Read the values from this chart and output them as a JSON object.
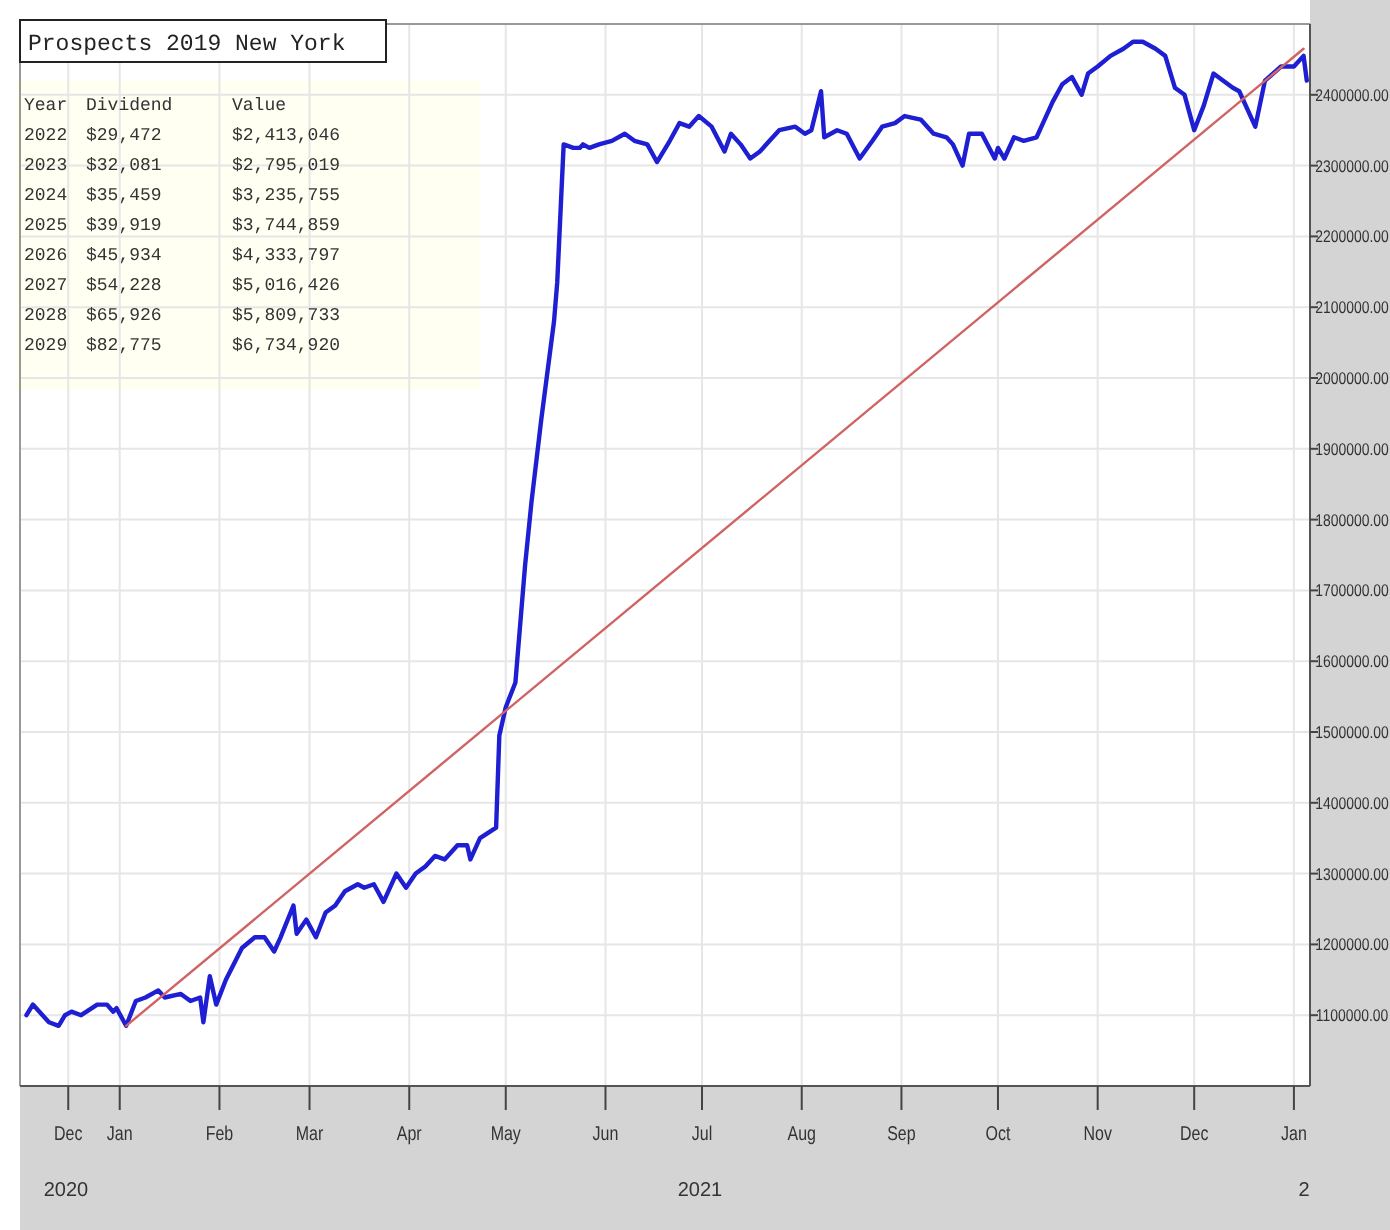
{
  "chart_data": {
    "type": "line",
    "title": "Prospects 2019 New York",
    "annotations": [
      "Year",
      "Dividend",
      "Value",
      "2022",
      "$29,472",
      "$2,413,046",
      "2023",
      "$32,081",
      "$2,795,019",
      "2024",
      "$35,459",
      "$3,235,755",
      "2025",
      "$39,919",
      "$3,744,859",
      "2026",
      "$45,934",
      "$4,333,797",
      "2027",
      "$54,228",
      "$5,016,426",
      "2028",
      "$65,926",
      "$5,809,733",
      "2029",
      "$82,775",
      "$6,734,920",
      "2020",
      "2021",
      "2"
    ],
    "xlim": [
      "2020-12-01",
      "2022-01-06"
    ],
    "xticks": [
      {
        "value": "2020-12-16",
        "label": "Dec"
      },
      {
        "value": "2021-01-01",
        "label": "Jan"
      },
      {
        "value": "2021-02-01",
        "label": "Feb"
      },
      {
        "value": "2021-03-01",
        "label": "Mar"
      },
      {
        "value": "2021-04-01",
        "label": "Apr"
      },
      {
        "value": "2021-05-01",
        "label": "May"
      },
      {
        "value": "2021-06-01",
        "label": "Jun"
      },
      {
        "value": "2021-07-01",
        "label": "Jul"
      },
      {
        "value": "2021-08-01",
        "label": "Aug"
      },
      {
        "value": "2021-09-01",
        "label": "Sep"
      },
      {
        "value": "2021-10-01",
        "label": "Oct"
      },
      {
        "value": "2021-11-01",
        "label": "Nov"
      },
      {
        "value": "2021-12-01",
        "label": "Dec"
      },
      {
        "value": "2022-01-01",
        "label": "Jan"
      }
    ],
    "ylim": [
      1000000,
      2500000
    ],
    "yticks": [
      {
        "value": 1100000,
        "label": "1100000.00"
      },
      {
        "value": 1200000,
        "label": "1200000.00"
      },
      {
        "value": 1300000,
        "label": "1300000.00"
      },
      {
        "value": 1400000,
        "label": "1400000.00"
      },
      {
        "value": 1500000,
        "label": "1500000.00"
      },
      {
        "value": 1600000,
        "label": "1600000.00"
      },
      {
        "value": 1700000,
        "label": "1700000.00"
      },
      {
        "value": 1800000,
        "label": "1800000.00"
      },
      {
        "value": 1900000,
        "label": "1900000.00"
      },
      {
        "value": 2000000,
        "label": "2000000.00"
      },
      {
        "value": 2100000,
        "label": "2100000.00"
      },
      {
        "value": 2200000,
        "label": "2200000.00"
      },
      {
        "value": 2300000,
        "label": "2300000.00"
      },
      {
        "value": 2400000,
        "label": "2400000.00"
      }
    ],
    "grid": true,
    "marker": "none",
    "series": [
      {
        "color": "#1e1ed2",
        "x": [
          "2020-12-03",
          "2020-12-05",
          "2020-12-10",
          "2020-12-13",
          "2020-12-15",
          "2020-12-17",
          "2020-12-20",
          "2020-12-25",
          "2020-12-28",
          "2020-12-30",
          "2020-12-31",
          "2021-01-03",
          "2021-01-06",
          "2021-01-09",
          "2021-01-13",
          "2021-01-15",
          "2021-01-20",
          "2021-01-23",
          "2021-01-26",
          "2021-01-27",
          "2021-01-29",
          "2021-01-31",
          "2021-02-03",
          "2021-02-08",
          "2021-02-12",
          "2021-02-15",
          "2021-02-18",
          "2021-02-20",
          "2021-02-24",
          "2021-02-25",
          "2021-02-28",
          "2021-03-03",
          "2021-03-06",
          "2021-03-09",
          "2021-03-12",
          "2021-03-16",
          "2021-03-18",
          "2021-03-21",
          "2021-03-24",
          "2021-03-28",
          "2021-03-31",
          "2021-04-03",
          "2021-04-06",
          "2021-04-09",
          "2021-04-12",
          "2021-04-16",
          "2021-04-19",
          "2021-04-20",
          "2021-04-23",
          "2021-04-28",
          "2021-04-29",
          "2021-05-01",
          "2021-05-04",
          "2021-05-07",
          "2021-05-09",
          "2021-05-12",
          "2021-05-16",
          "2021-05-17",
          "2021-05-19",
          "2021-05-22",
          "2021-05-24",
          "2021-05-25",
          "2021-05-27",
          "2021-05-30",
          "2021-06-03",
          "2021-06-07",
          "2021-06-10",
          "2021-06-14",
          "2021-06-17",
          "2021-06-21",
          "2021-06-24",
          "2021-06-27",
          "2021-06-30",
          "2021-07-04",
          "2021-07-08",
          "2021-07-10",
          "2021-07-13",
          "2021-07-16",
          "2021-07-19",
          "2021-07-22",
          "2021-07-25",
          "2021-07-30",
          "2021-08-02",
          "2021-08-04",
          "2021-08-07",
          "2021-08-08",
          "2021-08-12",
          "2021-08-15",
          "2021-08-19",
          "2021-08-23",
          "2021-08-26",
          "2021-08-30",
          "2021-09-02",
          "2021-09-07",
          "2021-09-11",
          "2021-09-15",
          "2021-09-17",
          "2021-09-20",
          "2021-09-22",
          "2021-09-26",
          "2021-09-30",
          "2021-10-01",
          "2021-10-03",
          "2021-10-06",
          "2021-10-09",
          "2021-10-13",
          "2021-10-15",
          "2021-10-18",
          "2021-10-21",
          "2021-10-24",
          "2021-10-27",
          "2021-10-29",
          "2021-11-01",
          "2021-11-05",
          "2021-11-09",
          "2021-11-12",
          "2021-11-15",
          "2021-11-19",
          "2021-11-22",
          "2021-11-25",
          "2021-11-28",
          "2021-12-01",
          "2021-12-04",
          "2021-12-07",
          "2021-12-13",
          "2021-12-15",
          "2021-12-20",
          "2021-12-23",
          "2021-12-28",
          "2022-01-01",
          "2022-01-04",
          "2022-01-05"
        ],
        "values": [
          1100000,
          1115000,
          1090000,
          1085000,
          1100000,
          1105000,
          1100000,
          1115000,
          1115000,
          1105000,
          1110000,
          1085000,
          1120000,
          1125000,
          1135000,
          1125000,
          1130000,
          1120000,
          1125000,
          1090000,
          1155000,
          1115000,
          1150000,
          1195000,
          1210000,
          1210000,
          1190000,
          1210000,
          1255000,
          1215000,
          1235000,
          1210000,
          1245000,
          1255000,
          1275000,
          1285000,
          1280000,
          1285000,
          1260000,
          1300000,
          1280000,
          1300000,
          1310000,
          1325000,
          1320000,
          1340000,
          1340000,
          1320000,
          1350000,
          1365000,
          1495000,
          1535000,
          1570000,
          1735000,
          1825000,
          1940000,
          2080000,
          2135000,
          2330000,
          2325000,
          2325000,
          2330000,
          2325000,
          2330000,
          2335000,
          2345000,
          2335000,
          2330000,
          2305000,
          2335000,
          2360000,
          2355000,
          2370000,
          2355000,
          2320000,
          2345000,
          2330000,
          2310000,
          2320000,
          2335000,
          2350000,
          2355000,
          2345000,
          2350000,
          2405000,
          2340000,
          2350000,
          2345000,
          2310000,
          2335000,
          2355000,
          2360000,
          2370000,
          2365000,
          2345000,
          2340000,
          2330000,
          2300000,
          2345000,
          2345000,
          2310000,
          2325000,
          2310000,
          2340000,
          2335000,
          2340000,
          2360000,
          2390000,
          2415000,
          2425000,
          2400000,
          2430000,
          2440000,
          2455000,
          2465000,
          2475000,
          2475000,
          2465000,
          2455000,
          2410000,
          2400000,
          2350000,
          2385000,
          2430000,
          2410000,
          2405000,
          2355000,
          2420000,
          2440000,
          2440000,
          2455000,
          2420000
        ]
      },
      {
        "type": "line",
        "color": "#d06464",
        "x": [
          "2021-01-03",
          "2022-01-04"
        ],
        "values": [
          1085000,
          2465000
        ]
      }
    ]
  }
}
